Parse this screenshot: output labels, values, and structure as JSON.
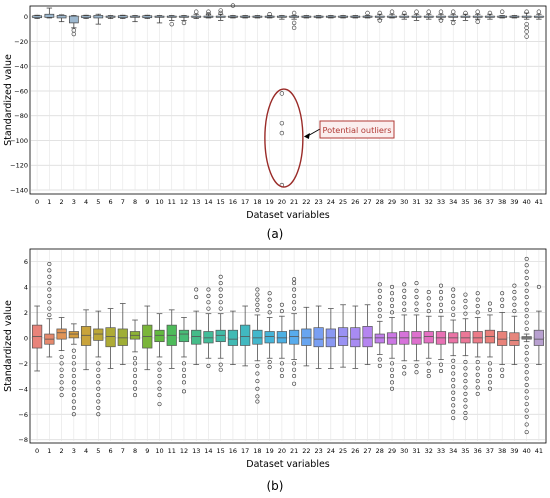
{
  "panels": {
    "a": {
      "caption": "(a)"
    },
    "b": {
      "caption": "(b)"
    }
  },
  "chart_data": [
    {
      "type": "boxplot",
      "panel": "a",
      "ylabel": "Standardized value",
      "xlabel": "Dataset variables",
      "ylim": [
        -140,
        0
      ],
      "yticks": [
        0,
        -20,
        -40,
        -60,
        -80,
        -100,
        -120,
        -140
      ],
      "grid": true,
      "categories": [
        "0",
        "1",
        "2",
        "3",
        "4",
        "5",
        "6",
        "7",
        "8",
        "9",
        "10",
        "11",
        "12",
        "13",
        "14",
        "15",
        "16",
        "17",
        "18",
        "19",
        "20",
        "21",
        "22",
        "23",
        "24",
        "25",
        "26",
        "27",
        "28",
        "29",
        "30",
        "31",
        "32",
        "33",
        "34",
        "35",
        "36",
        "37",
        "38",
        "39",
        "40",
        "41"
      ],
      "box_color": "#9db8cf",
      "boxes": [
        {
          "q1": -0.8,
          "q3": 0.8,
          "low": -1.5,
          "high": 1.2,
          "out": []
        },
        {
          "q1": -0.5,
          "q3": 2,
          "low": -1,
          "high": 7,
          "out": []
        },
        {
          "q1": -1,
          "q3": 1,
          "low": -4,
          "high": 1.5,
          "out": []
        },
        {
          "q1": -5,
          "q3": 0.5,
          "low": -9,
          "high": 1,
          "out": [
            -11,
            -14
          ]
        },
        {
          "q1": -0.8,
          "q3": 0.8,
          "low": -1.5,
          "high": 1.2,
          "out": []
        },
        {
          "q1": -1,
          "q3": 1,
          "low": -6,
          "high": 2,
          "out": []
        },
        {
          "q1": -0.5,
          "q3": 0.5,
          "low": -1.5,
          "high": 1,
          "out": []
        },
        {
          "q1": -0.8,
          "q3": 0.8,
          "low": -1.5,
          "high": 1.2,
          "out": []
        },
        {
          "q1": -0.5,
          "q3": 0.5,
          "low": -4,
          "high": 1,
          "out": []
        },
        {
          "q1": -0.8,
          "q3": 0.8,
          "low": -1.5,
          "high": 1.2,
          "out": []
        },
        {
          "q1": -0.5,
          "q3": 0.5,
          "low": -5,
          "high": 1,
          "out": []
        },
        {
          "q1": -0.5,
          "q3": 0.5,
          "low": -3,
          "high": 1,
          "out": [
            -6
          ]
        },
        {
          "q1": -0.5,
          "q3": 0.5,
          "low": -3,
          "high": 1,
          "out": [
            -5
          ]
        },
        {
          "q1": -0.5,
          "q3": 0.5,
          "low": -1.5,
          "high": 2,
          "out": [
            4
          ]
        },
        {
          "q1": -0.5,
          "q3": 0.5,
          "low": -1,
          "high": 2,
          "out": [
            2,
            4
          ]
        },
        {
          "q1": -0.5,
          "q3": 0.5,
          "low": -3,
          "high": 2,
          "out": [
            3,
            5
          ]
        },
        {
          "q1": -0.5,
          "q3": 0.5,
          "low": -1,
          "high": 1,
          "out": [
            9
          ]
        },
        {
          "q1": -0.5,
          "q3": 0.5,
          "low": -1,
          "high": 1,
          "out": []
        },
        {
          "q1": -0.5,
          "q3": 0.5,
          "low": -1,
          "high": 1,
          "out": []
        },
        {
          "q1": -0.5,
          "q3": 0.5,
          "low": -1,
          "high": 1,
          "out": [
            2
          ]
        },
        {
          "q1": -0.5,
          "q3": 0.5,
          "low": -2,
          "high": 1,
          "out": [
            -62,
            -86,
            -94,
            -136
          ]
        },
        {
          "q1": -0.5,
          "q3": 0.5,
          "low": -2,
          "high": 1,
          "out": [
            -5,
            -9,
            3
          ]
        },
        {
          "q1": -0.5,
          "q3": 0.5,
          "low": -1,
          "high": 1,
          "out": []
        },
        {
          "q1": -0.5,
          "q3": 0.5,
          "low": -1,
          "high": 1,
          "out": []
        },
        {
          "q1": -0.5,
          "q3": 0.5,
          "low": -1,
          "high": 1,
          "out": []
        },
        {
          "q1": -0.5,
          "q3": 0.5,
          "low": -1,
          "high": 1,
          "out": []
        },
        {
          "q1": -0.5,
          "q3": 0.5,
          "low": -1,
          "high": 1,
          "out": []
        },
        {
          "q1": -0.5,
          "q3": 0.5,
          "low": -1,
          "high": 1,
          "out": [
            3
          ]
        },
        {
          "q1": -0.5,
          "q3": 0.5,
          "low": -2,
          "high": 2,
          "out": [
            3,
            -3
          ]
        },
        {
          "q1": -0.5,
          "q3": 0.5,
          "low": -1,
          "high": 2,
          "out": [
            4
          ]
        },
        {
          "q1": -0.5,
          "q3": 0.5,
          "low": -2,
          "high": 2,
          "out": [
            3
          ]
        },
        {
          "q1": -0.5,
          "q3": 0.5,
          "low": -3,
          "high": 2,
          "out": [
            4
          ]
        },
        {
          "q1": -0.5,
          "q3": 0.5,
          "low": -2,
          "high": 2,
          "out": [
            4
          ]
        },
        {
          "q1": -0.5,
          "q3": 0.5,
          "low": -2,
          "high": 2,
          "out": [
            4,
            -3
          ]
        },
        {
          "q1": -0.5,
          "q3": 0.5,
          "low": -3,
          "high": 2,
          "out": [
            4,
            -5
          ]
        },
        {
          "q1": -0.5,
          "q3": 0.5,
          "low": -3,
          "high": 2,
          "out": [
            3
          ]
        },
        {
          "q1": -0.5,
          "q3": 0.5,
          "low": -2,
          "high": 2,
          "out": [
            4,
            -4
          ]
        },
        {
          "q1": -0.5,
          "q3": 0.5,
          "low": -2,
          "high": 2,
          "out": [
            3
          ]
        },
        {
          "q1": -0.5,
          "q3": 0.5,
          "low": -1,
          "high": 1,
          "out": [
            4
          ]
        },
        {
          "q1": -0.5,
          "q3": 0.5,
          "low": -1,
          "high": 1,
          "out": []
        },
        {
          "q1": -0.5,
          "q3": 0.5,
          "low": -2,
          "high": 3,
          "out": [
            4,
            -6,
            -9,
            -12,
            -16
          ]
        },
        {
          "q1": -0.5,
          "q3": 0.5,
          "low": -2,
          "high": 2,
          "out": [
            4
          ]
        }
      ],
      "annotation": {
        "text": "Potential outliers"
      }
    },
    {
      "type": "boxplot",
      "panel": "b",
      "ylabel": "Standardized value",
      "xlabel": "Dataset variables",
      "ylim": [
        -8,
        7
      ],
      "yticks": [
        6,
        4,
        2,
        0,
        -2,
        -4,
        -6,
        -8
      ],
      "grid": true,
      "categories": [
        "0",
        "1",
        "2",
        "3",
        "4",
        "5",
        "6",
        "7",
        "8",
        "9",
        "10",
        "11",
        "12",
        "13",
        "14",
        "15",
        "16",
        "17",
        "18",
        "19",
        "20",
        "21",
        "22",
        "23",
        "24",
        "25",
        "26",
        "27",
        "28",
        "29",
        "30",
        "31",
        "32",
        "33",
        "34",
        "35",
        "36",
        "37",
        "38",
        "39",
        "40",
        "41"
      ],
      "colors": [
        "#e8837a",
        "#e5896d",
        "#e09457",
        "#d49c3c",
        "#c9a33b",
        "#bca737",
        "#aeab36",
        "#9fae35",
        "#8eb236",
        "#7ab539",
        "#62b93f",
        "#4ebb5b",
        "#47bc76",
        "#45bc89",
        "#43bc99",
        "#42bba7",
        "#41bab4",
        "#41b8c0",
        "#43b7cc",
        "#46b4d8",
        "#4cb0e3",
        "#58abec",
        "#68a5f0",
        "#799ff2",
        "#8a98f3",
        "#9a92f3",
        "#a88bf2",
        "#b585f0",
        "#c17eeb",
        "#cc78e4",
        "#d673da",
        "#de70ce",
        "#e470c2",
        "#e871b4",
        "#eb74a6",
        "#ec7797",
        "#ec7b88",
        "#ea7f7a",
        "#e8837a",
        "#e6867d",
        "#9a9a9a",
        "#b8a0d0"
      ],
      "boxes": [
        {
          "q1": -0.8,
          "q3": 1.0,
          "med": 0.1,
          "low": -2.6,
          "high": 2.5,
          "out": []
        },
        {
          "q1": -0.5,
          "q3": 0.3,
          "med": -0.1,
          "low": -1.5,
          "high": 1.5,
          "out": [
            1.8,
            2.3,
            2.8,
            3.3,
            3.8,
            4.3,
            4.8,
            5.3,
            5.8
          ]
        },
        {
          "q1": -0.1,
          "q3": 0.7,
          "med": 0.4,
          "low": -1,
          "high": 1.6,
          "out": [
            -1.5,
            -2,
            -2.5,
            -3,
            -3.5,
            -4,
            -4.5
          ]
        },
        {
          "q1": 0.0,
          "q3": 0.5,
          "med": 0.3,
          "low": -0.5,
          "high": 1.1,
          "out": [
            -1,
            -1.5,
            -2,
            -2.5,
            -3,
            -3.5,
            -4,
            -4.5,
            -5,
            -5.5,
            -6
          ]
        },
        {
          "q1": -0.6,
          "q3": 0.9,
          "med": 0.2,
          "low": -2.5,
          "high": 2.2,
          "out": []
        },
        {
          "q1": -0.2,
          "q3": 0.7,
          "med": 0.3,
          "low": -1.5,
          "high": 2.1,
          "out": [
            -2,
            -2.5,
            -3,
            -3.5,
            -4,
            -4.5,
            -5,
            -5.5,
            -6
          ]
        },
        {
          "q1": -0.7,
          "q3": 0.8,
          "med": 0.1,
          "low": -2.4,
          "high": 2.3,
          "out": []
        },
        {
          "q1": -0.6,
          "q3": 0.7,
          "med": 0.0,
          "low": -2.1,
          "high": 2.7,
          "out": []
        },
        {
          "q1": -0.1,
          "q3": 0.5,
          "med": 0.2,
          "low": -1.1,
          "high": 1.4,
          "out": [
            -1.6,
            -2,
            -2.5,
            -3,
            -3.5,
            -4,
            -4.5
          ]
        },
        {
          "q1": -0.8,
          "q3": 1.0,
          "med": 0.1,
          "low": -2.5,
          "high": 2.5,
          "out": []
        },
        {
          "q1": -0.3,
          "q3": 0.6,
          "med": 0.2,
          "low": -1.5,
          "high": 1.9,
          "out": [
            -2,
            -2.5,
            -3,
            -3.5,
            -4,
            -4.5,
            -5.2
          ]
        },
        {
          "q1": -0.6,
          "q3": 1.0,
          "med": 0.2,
          "low": -2.4,
          "high": 2.2,
          "out": []
        },
        {
          "q1": -0.3,
          "q3": 0.6,
          "med": 0.3,
          "low": -1.5,
          "high": 1.6,
          "out": [
            -2,
            -2.5,
            -3,
            -3.5,
            -4.2
          ]
        },
        {
          "q1": -0.5,
          "q3": 0.6,
          "med": 0.1,
          "low": -2.1,
          "high": 2.1,
          "out": [
            3.2,
            3.8
          ]
        },
        {
          "q1": -0.4,
          "q3": 0.5,
          "med": 0.0,
          "low": -1.6,
          "high": 1.9,
          "out": [
            2.3,
            2.8,
            3.3,
            3.8,
            -2.2
          ]
        },
        {
          "q1": -0.3,
          "q3": 0.6,
          "med": 0.2,
          "low": -1.6,
          "high": 1.9,
          "out": [
            2.3,
            2.8,
            3.3,
            3.8,
            4.3,
            4.8,
            -2.1,
            -2.5
          ]
        },
        {
          "q1": -0.6,
          "q3": 0.6,
          "med": -0.1,
          "low": -2.1,
          "high": 2.1,
          "out": []
        },
        {
          "q1": -0.6,
          "q3": 1.0,
          "med": 0.1,
          "low": -2.2,
          "high": 2.5,
          "out": []
        },
        {
          "q1": -0.5,
          "q3": 0.6,
          "med": 0.0,
          "low": -1.8,
          "high": 1.8,
          "out": [
            2.2,
            2.6,
            3,
            3.4,
            3.8,
            -2.2,
            -2.8,
            -3.4,
            -4,
            -4.6,
            -5
          ]
        },
        {
          "q1": -0.4,
          "q3": 0.5,
          "med": 0.1,
          "low": -1.6,
          "high": 1.6,
          "out": [
            2,
            2.5,
            3,
            3.5,
            -1.9,
            -2.3
          ]
        },
        {
          "q1": -0.4,
          "q3": 0.5,
          "med": 0.0,
          "low": -1.6,
          "high": 1.7,
          "out": [
            2.1,
            2.6,
            -2,
            -2.5,
            -3
          ]
        },
        {
          "q1": -0.5,
          "q3": 0.6,
          "med": 0.1,
          "low": -1.7,
          "high": 1.9,
          "out": [
            2.3,
            2.8,
            3.3,
            3.8,
            4.3,
            4.6,
            -2,
            -2.5,
            -3,
            -3.6
          ]
        },
        {
          "q1": -0.6,
          "q3": 0.7,
          "med": 0.0,
          "low": -2.2,
          "high": 2.4,
          "out": []
        },
        {
          "q1": -0.7,
          "q3": 0.8,
          "med": -0.1,
          "low": -2.4,
          "high": 2.5,
          "out": []
        },
        {
          "q1": -0.7,
          "q3": 0.7,
          "med": 0.0,
          "low": -2.4,
          "high": 2.3,
          "out": []
        },
        {
          "q1": -0.6,
          "q3": 0.8,
          "med": 0.1,
          "low": -2.3,
          "high": 2.6,
          "out": []
        },
        {
          "q1": -0.7,
          "q3": 0.8,
          "med": -0.1,
          "low": -2.4,
          "high": 2.5,
          "out": []
        },
        {
          "q1": -0.7,
          "q3": 0.9,
          "med": 0.0,
          "low": -2.1,
          "high": 2.6,
          "out": []
        },
        {
          "q1": -0.4,
          "q3": 0.3,
          "med": 0.0,
          "low": -1.3,
          "high": 1.3,
          "out": [
            1.7,
            2.2,
            2.7,
            3.2,
            3.7,
            4.2,
            -1.7,
            -2.2
          ]
        },
        {
          "q1": -0.5,
          "q3": 0.4,
          "med": 0.0,
          "low": -1.6,
          "high": 1.6,
          "out": [
            2,
            2.5,
            3,
            3.5,
            4,
            -2,
            -2.5,
            -3,
            -3.5,
            -4
          ]
        },
        {
          "q1": -0.5,
          "q3": 0.5,
          "med": 0.0,
          "low": -1.8,
          "high": 1.8,
          "out": [
            2.2,
            2.7,
            3.2,
            3.7,
            4.2,
            -2.3,
            -2.8
          ]
        },
        {
          "q1": -0.5,
          "q3": 0.5,
          "med": 0.0,
          "low": -1.8,
          "high": 1.8,
          "out": [
            2.2,
            2.7,
            3.2,
            3.7,
            4.3,
            -2.2,
            -2.7
          ]
        },
        {
          "q1": -0.4,
          "q3": 0.5,
          "med": 0.1,
          "low": -1.6,
          "high": 1.7,
          "out": [
            2.1,
            2.6,
            3.1,
            3.6,
            -2,
            -2.6,
            -3
          ]
        },
        {
          "q1": -0.5,
          "q3": 0.5,
          "med": 0.0,
          "low": -1.7,
          "high": 1.7,
          "out": [
            2.1,
            2.6,
            3.1,
            3.6,
            4.1,
            -2.1,
            -2.6
          ]
        },
        {
          "q1": -0.4,
          "q3": 0.4,
          "med": 0.0,
          "low": -1.4,
          "high": 1.4,
          "out": [
            1.8,
            2.3,
            2.8,
            3.3,
            3.8,
            -1.8,
            -2.3,
            -2.8,
            -3.3,
            -3.8,
            -4.3,
            -4.8,
            -5.3,
            -5.8,
            -6.3
          ]
        },
        {
          "q1": -0.4,
          "q3": 0.5,
          "med": 0.0,
          "low": -1.4,
          "high": 1.5,
          "out": [
            1.9,
            2.4,
            2.9,
            3.4,
            -1.9,
            -2.4,
            -2.9,
            -3.4,
            -3.9,
            -4.4,
            -4.9,
            -5.4,
            -5.9,
            -6.3
          ]
        },
        {
          "q1": -0.4,
          "q3": 0.5,
          "med": 0.0,
          "low": -1.5,
          "high": 1.6,
          "out": [
            2,
            2.5,
            3,
            3.5,
            -1.9,
            -2.4,
            -2.9,
            -3.4,
            -3.9,
            -4.4
          ]
        },
        {
          "q1": -0.4,
          "q3": 0.6,
          "med": 0.1,
          "low": -1.5,
          "high": 1.8,
          "out": [
            2.2,
            2.7,
            -2,
            -2.5,
            -3,
            -3.5,
            -4
          ]
        },
        {
          "q1": -0.6,
          "q3": 0.5,
          "med": -0.1,
          "low": -2.1,
          "high": 2,
          "out": [
            2.5,
            3,
            3.5,
            -2.5,
            -3
          ]
        },
        {
          "q1": -0.6,
          "q3": 0.4,
          "med": -0.2,
          "low": -2.1,
          "high": 1.7,
          "out": [
            2.1,
            2.6,
            3.1,
            3.6,
            4.1
          ]
        },
        {
          "q1": -0.1,
          "q3": 0.1,
          "med": 0.0,
          "low": -0.3,
          "high": 0.3,
          "out": [
            0.7,
            1.2,
            1.7,
            2.2,
            2.7,
            3.2,
            3.7,
            4.2,
            4.7,
            5.2,
            5.7,
            6.2,
            -0.7,
            -1.2,
            -1.7,
            -2.2,
            -2.7,
            -3.2,
            -3.7,
            -4.2,
            -4.7,
            -5.2,
            -5.7,
            -6.2,
            -6.8,
            -7.4
          ]
        },
        {
          "q1": -0.6,
          "q3": 0.6,
          "med": -0.1,
          "low": -2.1,
          "high": 2.1,
          "out": [
            4
          ]
        }
      ]
    }
  ]
}
